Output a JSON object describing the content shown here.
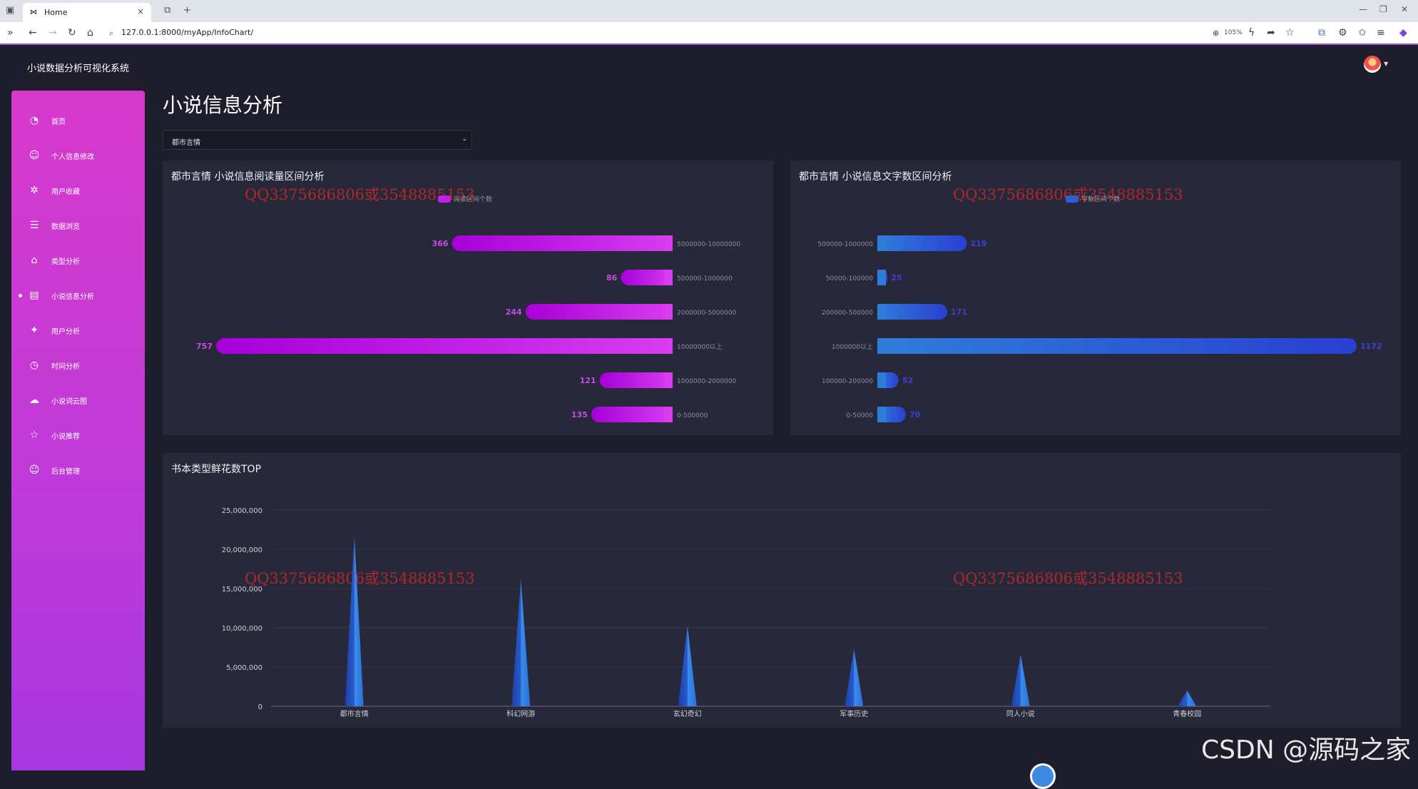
{
  "browser": {
    "tab_title": "Home",
    "tab_close": "×",
    "new_tab": "+",
    "url": "127.0.0.1:8000/myApp/InfoChart/",
    "zoom": "105%"
  },
  "app": {
    "title": "小说数据分析可视化系统"
  },
  "sidebar": {
    "items": [
      {
        "label": "首页",
        "icon": "pie-chart-icon",
        "glyph": "◔"
      },
      {
        "label": "个人信息修改",
        "icon": "user-icon",
        "glyph": "☺"
      },
      {
        "label": "用户收藏",
        "icon": "settings-icon",
        "glyph": "✲"
      },
      {
        "label": "数据浏览",
        "icon": "list-icon",
        "glyph": "☰"
      },
      {
        "label": "类型分析",
        "icon": "tag-icon",
        "glyph": "⌂"
      },
      {
        "label": "小说信息分析",
        "icon": "book-icon",
        "glyph": "▤"
      },
      {
        "label": "用户分析",
        "icon": "runner-icon",
        "glyph": "✦"
      },
      {
        "label": "时间分析",
        "icon": "alarm-icon",
        "glyph": "◷"
      },
      {
        "label": "小说词云图",
        "icon": "cloud-upload-icon",
        "glyph": "☁"
      },
      {
        "label": "小说推荐",
        "icon": "star-icon",
        "glyph": "☆"
      },
      {
        "label": "后台管理",
        "icon": "admin-user-icon",
        "glyph": "☺"
      }
    ],
    "active_index": 5
  },
  "main": {
    "page_title": "小说信息分析",
    "category_select": {
      "value": "都市言情"
    }
  },
  "watermark": "QQ3375686806或3548885153",
  "footer_watermark": "CSDN @源码之家",
  "colors": {
    "sidebar_top": "#d63acb",
    "read_bar": "#c020e8",
    "word_bar": "#2e5fd6",
    "area_fill": "#2f7fd8"
  },
  "chart_data": [
    {
      "type": "bar",
      "orientation": "horizontal",
      "title": "都市言情 小说信息阅读量区间分析",
      "legend": [
        "阅读区间个数"
      ],
      "categories": [
        "5000000-10000000",
        "500000-1000000",
        "2000000-5000000",
        "10000000以上",
        "1000000-2000000",
        "0-500000"
      ],
      "values": [
        366,
        86,
        244,
        757,
        121,
        135
      ],
      "xlim": [
        0,
        757
      ]
    },
    {
      "type": "bar",
      "orientation": "horizontal",
      "title": "都市言情 小说信息文字数区间分析",
      "legend": [
        "字数区间个数"
      ],
      "categories": [
        "500000-1000000",
        "50000-100000",
        "200000-500000",
        "1000000以上",
        "100000-200000",
        "0-50000"
      ],
      "values": [
        219,
        25,
        171,
        1172,
        52,
        70
      ],
      "xlim": [
        0,
        1172
      ]
    },
    {
      "type": "area",
      "title": "书本类型鲜花数TOP",
      "categories": [
        "都市言情",
        "科幻网游",
        "玄幻奇幻",
        "军事历史",
        "同人小说",
        "青春校园"
      ],
      "values": [
        21700000,
        16200000,
        10300000,
        7300000,
        6600000,
        2000000
      ],
      "yticks": [
        "0",
        "5,000,000",
        "10,000,000",
        "15,000,000",
        "20,000,000",
        "25,000,000"
      ],
      "ylim": [
        0,
        25000000
      ]
    }
  ]
}
